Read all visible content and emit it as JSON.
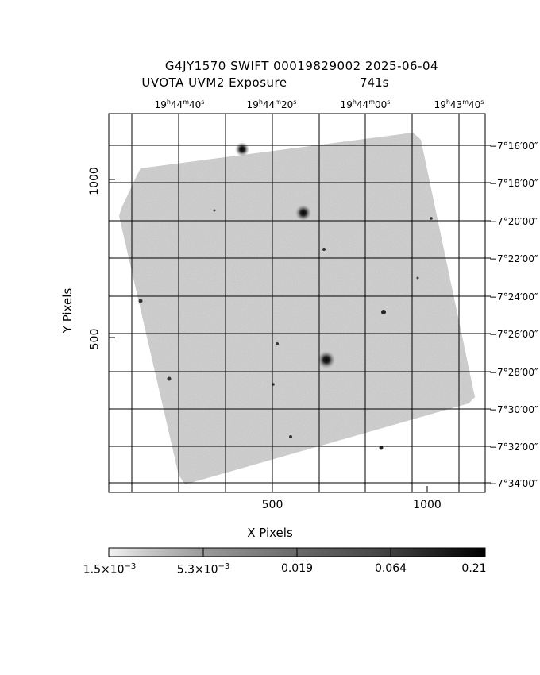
{
  "title": {
    "line1": "G4JY1570 SWIFT 00019829002 2025-06-04",
    "line2": "UVOTA UVM2 Exposure",
    "exposure": "741s"
  },
  "axes": {
    "xlabel": "X Pixels",
    "ylabel": "Y Pixels",
    "x_ticks": [
      "500",
      "1000"
    ],
    "y_ticks": [
      "1000",
      "500"
    ]
  },
  "ra_ticks": [
    {
      "h": "19",
      "m": "44",
      "s": "40"
    },
    {
      "h": "19",
      "m": "44",
      "s": "20"
    },
    {
      "h": "19",
      "m": "44",
      "s": "00"
    },
    {
      "h": "19",
      "m": "43",
      "s": "40"
    }
  ],
  "dec_ticks": [
    "−7°16′00″",
    "−7°18′00″",
    "−7°20′00″",
    "−7°22′00″",
    "−7°24′00″",
    "−7°26′00″",
    "−7°28′00″",
    "−7°30′00″",
    "−7°32′00″",
    "−7°34′00″"
  ],
  "colorbar": {
    "labels": [
      {
        "base": "1.5×10",
        "exp": "−3"
      },
      {
        "base": "5.3×10",
        "exp": "−3"
      },
      {
        "base": "0.019",
        "exp": ""
      },
      {
        "base": "0.064",
        "exp": ""
      },
      {
        "base": "0.21",
        "exp": ""
      }
    ]
  },
  "colors": {
    "background": "#ffffff",
    "noise": "#9a9a9a",
    "axes": "#000000"
  }
}
